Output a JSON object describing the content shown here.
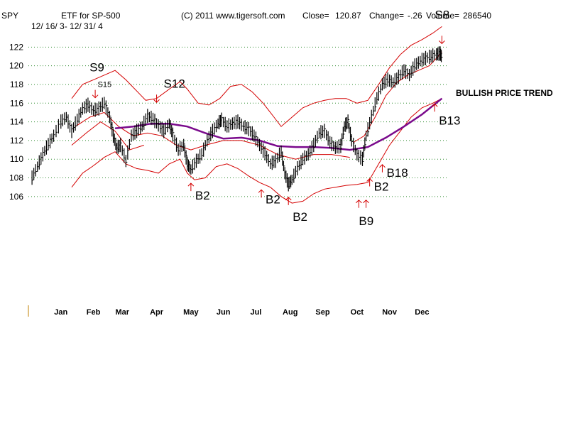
{
  "header": {
    "ticker": "SPY",
    "etf_label": "ETF for SP-500",
    "date_range": "12/ 16/ 3- 12/ 31/ 4",
    "copyright": "(C) 2011 www.tigersoft.com",
    "close_label": "Close=",
    "close_value": "120.87",
    "change_label": "Change=",
    "change_value": "-.26",
    "volume_label": "Volume=",
    "volume_value": "286540"
  },
  "annotation_trend": "BULLISH PRICE TREND",
  "colors": {
    "price": "#000000",
    "bands": "#d40000",
    "moving_average": "#7a0a8c",
    "grid": "#2e8b2e",
    "arrows": "#d40000"
  },
  "chart_data": {
    "type": "line",
    "title": "ETF for SP-500",
    "ylim": [
      105,
      124
    ],
    "y_ticks": [
      106,
      108,
      110,
      112,
      114,
      116,
      118,
      120,
      122
    ],
    "x_tick_labels": [
      "Jan",
      "Feb",
      "Mar",
      "Apr",
      "May",
      "Jun",
      "Jul",
      "Aug",
      "Sep",
      "Oct",
      "Nov",
      "Dec"
    ],
    "x_tick_positions": [
      0.5,
      1.4,
      2.2,
      3.15,
      4.1,
      5.0,
      5.9,
      6.85,
      7.75,
      8.7,
      9.6,
      10.5
    ],
    "xlim": [
      -0.4,
      11.2
    ],
    "grid": "horizontal-dotted",
    "price_points": [
      [
        -0.3,
        108.0
      ],
      [
        -0.15,
        109.2
      ],
      [
        0.0,
        110.5
      ],
      [
        0.15,
        111.6
      ],
      [
        0.3,
        112.5
      ],
      [
        0.5,
        114.0
      ],
      [
        0.65,
        114.5
      ],
      [
        0.8,
        113.0
      ],
      [
        0.95,
        114.2
      ],
      [
        1.1,
        115.4
      ],
      [
        1.25,
        115.8
      ],
      [
        1.4,
        115.2
      ],
      [
        1.55,
        115.4
      ],
      [
        1.7,
        116.0
      ],
      [
        1.85,
        114.5
      ],
      [
        1.95,
        112.5
      ],
      [
        2.05,
        111.2
      ],
      [
        2.15,
        111.5
      ],
      [
        2.3,
        109.8
      ],
      [
        2.45,
        112.5
      ],
      [
        2.6,
        113.0
      ],
      [
        2.75,
        113.5
      ],
      [
        2.9,
        114.6
      ],
      [
        3.05,
        114.3
      ],
      [
        3.2,
        113.6
      ],
      [
        3.35,
        113.0
      ],
      [
        3.5,
        113.8
      ],
      [
        3.6,
        112.6
      ],
      [
        3.75,
        111.0
      ],
      [
        3.9,
        111.5
      ],
      [
        4.0,
        109.5
      ],
      [
        4.1,
        108.9
      ],
      [
        4.25,
        109.8
      ],
      [
        4.4,
        110.5
      ],
      [
        4.55,
        112.0
      ],
      [
        4.7,
        113.0
      ],
      [
        4.85,
        113.8
      ],
      [
        4.95,
        114.2
      ],
      [
        5.1,
        113.5
      ],
      [
        5.25,
        113.8
      ],
      [
        5.4,
        114.0
      ],
      [
        5.55,
        113.5
      ],
      [
        5.7,
        113.2
      ],
      [
        5.85,
        112.5
      ],
      [
        6.0,
        111.5
      ],
      [
        6.15,
        110.6
      ],
      [
        6.3,
        109.5
      ],
      [
        6.45,
        109.8
      ],
      [
        6.6,
        110.8
      ],
      [
        6.7,
        108.5
      ],
      [
        6.8,
        107.3
      ],
      [
        6.9,
        107.8
      ],
      [
        7.05,
        109.0
      ],
      [
        7.2,
        110.0
      ],
      [
        7.35,
        110.5
      ],
      [
        7.5,
        111.5
      ],
      [
        7.65,
        112.8
      ],
      [
        7.8,
        113.0
      ],
      [
        7.95,
        111.8
      ],
      [
        8.1,
        111.2
      ],
      [
        8.25,
        111.4
      ],
      [
        8.35,
        113.5
      ],
      [
        8.45,
        114.0
      ],
      [
        8.55,
        112.0
      ],
      [
        8.7,
        110.5
      ],
      [
        8.85,
        110.0
      ],
      [
        8.95,
        112.5
      ],
      [
        9.1,
        114.5
      ],
      [
        9.25,
        116.5
      ],
      [
        9.4,
        118.0
      ],
      [
        9.55,
        118.5
      ],
      [
        9.7,
        118.2
      ],
      [
        9.85,
        118.8
      ],
      [
        10.0,
        119.5
      ],
      [
        10.15,
        119.0
      ],
      [
        10.3,
        120.0
      ],
      [
        10.45,
        120.5
      ],
      [
        10.6,
        120.8
      ],
      [
        10.75,
        121.0
      ],
      [
        10.9,
        121.2
      ],
      [
        11.0,
        121.3
      ],
      [
        11.05,
        120.9
      ]
    ],
    "upper_band": [
      [
        0.8,
        116.5
      ],
      [
        1.1,
        118.0
      ],
      [
        1.4,
        118.5
      ],
      [
        1.7,
        119.0
      ],
      [
        2.0,
        119.5
      ],
      [
        2.3,
        118.5
      ],
      [
        2.6,
        117.3
      ],
      [
        2.85,
        116.3
      ],
      [
        3.15,
        116.5
      ],
      [
        3.5,
        117.5
      ],
      [
        3.8,
        118.3
      ],
      [
        4.0,
        117.5
      ],
      [
        4.3,
        116.0
      ],
      [
        4.6,
        115.8
      ],
      [
        4.9,
        116.5
      ],
      [
        5.2,
        117.8
      ],
      [
        5.5,
        118.0
      ],
      [
        5.8,
        117.2
      ],
      [
        6.1,
        116.0
      ],
      [
        6.4,
        114.5
      ],
      [
        6.6,
        113.5
      ],
      [
        6.9,
        114.5
      ],
      [
        7.2,
        115.5
      ],
      [
        7.5,
        116.0
      ],
      [
        7.8,
        116.3
      ],
      [
        8.1,
        116.5
      ],
      [
        8.4,
        116.5
      ],
      [
        8.7,
        116.0
      ],
      [
        9.0,
        116.3
      ],
      [
        9.3,
        118.0
      ],
      [
        9.6,
        119.8
      ],
      [
        9.9,
        121.2
      ],
      [
        10.2,
        122.2
      ],
      [
        10.5,
        122.8
      ],
      [
        10.8,
        123.5
      ],
      [
        11.05,
        124.2
      ]
    ],
    "lower_band": [
      [
        0.8,
        107.0
      ],
      [
        1.1,
        108.5
      ],
      [
        1.4,
        109.3
      ],
      [
        1.7,
        110.2
      ],
      [
        2.0,
        110.8
      ],
      [
        2.3,
        109.5
      ],
      [
        2.6,
        109.0
      ],
      [
        2.9,
        108.8
      ],
      [
        3.2,
        108.5
      ],
      [
        3.5,
        109.5
      ],
      [
        3.8,
        110.0
      ],
      [
        4.0,
        108.5
      ],
      [
        4.2,
        107.8
      ],
      [
        4.5,
        108.0
      ],
      [
        4.8,
        109.2
      ],
      [
        5.1,
        109.5
      ],
      [
        5.4,
        109.0
      ],
      [
        5.7,
        108.2
      ],
      [
        6.0,
        107.5
      ],
      [
        6.3,
        107.0
      ],
      [
        6.6,
        106.0
      ],
      [
        6.9,
        105.3
      ],
      [
        7.2,
        105.5
      ],
      [
        7.5,
        106.3
      ],
      [
        7.8,
        106.8
      ],
      [
        8.1,
        107.0
      ],
      [
        8.4,
        107.2
      ],
      [
        8.7,
        107.3
      ],
      [
        9.0,
        107.5
      ],
      [
        9.3,
        109.5
      ],
      [
        9.6,
        111.5
      ],
      [
        9.9,
        113.0
      ],
      [
        10.2,
        114.5
      ],
      [
        10.5,
        115.5
      ],
      [
        10.8,
        116.0
      ],
      [
        11.05,
        116.5
      ]
    ],
    "inner_upper": [
      [
        8.6,
        111.8
      ],
      [
        8.9,
        112.5
      ],
      [
        9.2,
        114.5
      ],
      [
        9.5,
        116.8
      ],
      [
        9.8,
        118.2
      ],
      [
        10.1,
        119.0
      ],
      [
        10.4,
        119.5
      ],
      [
        10.7,
        120.0
      ],
      [
        10.9,
        120.8
      ],
      [
        11.05,
        121.5
      ]
    ],
    "inner_lower": [
      [
        0.8,
        111.5
      ],
      [
        1.2,
        112.8
      ],
      [
        1.6,
        114.0
      ],
      [
        2.0,
        113.0
      ],
      [
        2.4,
        111.0
      ],
      [
        2.8,
        111.5
      ]
    ],
    "inner_upper_early": [
      [
        0.9,
        113.5
      ],
      [
        1.3,
        114.5
      ],
      [
        1.7,
        115.0
      ],
      [
        2.1,
        113.5
      ],
      [
        2.5,
        112.5
      ],
      [
        2.9,
        112.8
      ],
      [
        3.3,
        112.5
      ],
      [
        3.7,
        111.5
      ],
      [
        4.1,
        111.0
      ],
      [
        4.5,
        111.5
      ],
      [
        5.0,
        112.0
      ],
      [
        5.5,
        112.0
      ],
      [
        6.0,
        111.5
      ],
      [
        6.5,
        110.5
      ],
      [
        7.0,
        110.0
      ],
      [
        7.5,
        110.5
      ],
      [
        8.0,
        110.5
      ],
      [
        8.5,
        110.2
      ]
    ],
    "moving_average": [
      [
        2.0,
        113.3
      ],
      [
        2.5,
        113.5
      ],
      [
        3.0,
        113.8
      ],
      [
        3.5,
        113.8
      ],
      [
        4.0,
        113.5
      ],
      [
        4.5,
        112.8
      ],
      [
        5.0,
        112.2
      ],
      [
        5.5,
        112.3
      ],
      [
        6.0,
        112.0
      ],
      [
        6.5,
        111.4
      ],
      [
        7.0,
        111.3
      ],
      [
        7.5,
        111.3
      ],
      [
        8.0,
        111.2
      ],
      [
        8.5,
        111.0
      ],
      [
        9.0,
        111.3
      ],
      [
        9.5,
        112.3
      ],
      [
        10.0,
        113.5
      ],
      [
        10.5,
        114.8
      ],
      [
        11.05,
        116.5
      ]
    ],
    "signals": [
      {
        "label": "S9",
        "x": 1.45,
        "y": 116.5,
        "dir": "down",
        "size": "big",
        "label_dx": -8,
        "label_dy": -38
      },
      {
        "label": "S15",
        "x": 1.4,
        "y": 116.5,
        "dir": "none",
        "size": "small",
        "label_dx": 6,
        "label_dy": -16
      },
      {
        "label": "S12",
        "x": 3.15,
        "y": 116.0,
        "dir": "down",
        "size": "big",
        "label_dx": 10,
        "label_dy": -22
      },
      {
        "label": "B2",
        "x": 4.1,
        "y": 107.5,
        "dir": "up",
        "size": "big",
        "label_dx": 6,
        "label_dy": 24
      },
      {
        "label": "B2",
        "x": 6.05,
        "y": 106.8,
        "dir": "up",
        "size": "big",
        "label_dx": 6,
        "label_dy": 20
      },
      {
        "label": "B2",
        "x": 6.8,
        "y": 106.0,
        "dir": "up",
        "size": "big",
        "label_dx": 6,
        "label_dy": 34
      },
      {
        "label": "B9",
        "x": 8.75,
        "y": 105.7,
        "dir": "up",
        "size": "big",
        "label_dx": 0,
        "label_dy": 36
      },
      {
        "label": "B9",
        "x": 8.95,
        "y": 105.7,
        "dir": "up",
        "size": "none",
        "label_dx": 0,
        "label_dy": 0
      },
      {
        "label": "B2",
        "x": 9.05,
        "y": 108.0,
        "dir": "up",
        "size": "big",
        "label_dx": 6,
        "label_dy": 18
      },
      {
        "label": "B18",
        "x": 9.4,
        "y": 109.5,
        "dir": "up",
        "size": "big",
        "label_dx": 6,
        "label_dy": 18
      },
      {
        "label": "B13",
        "x": 10.85,
        "y": 116.0,
        "dir": "up",
        "size": "big",
        "label_dx": 6,
        "label_dy": 30
      },
      {
        "label": "S8",
        "x": 11.05,
        "y": 122.3,
        "dir": "down",
        "size": "big",
        "label_dx": -10,
        "label_dy": -36
      }
    ]
  }
}
